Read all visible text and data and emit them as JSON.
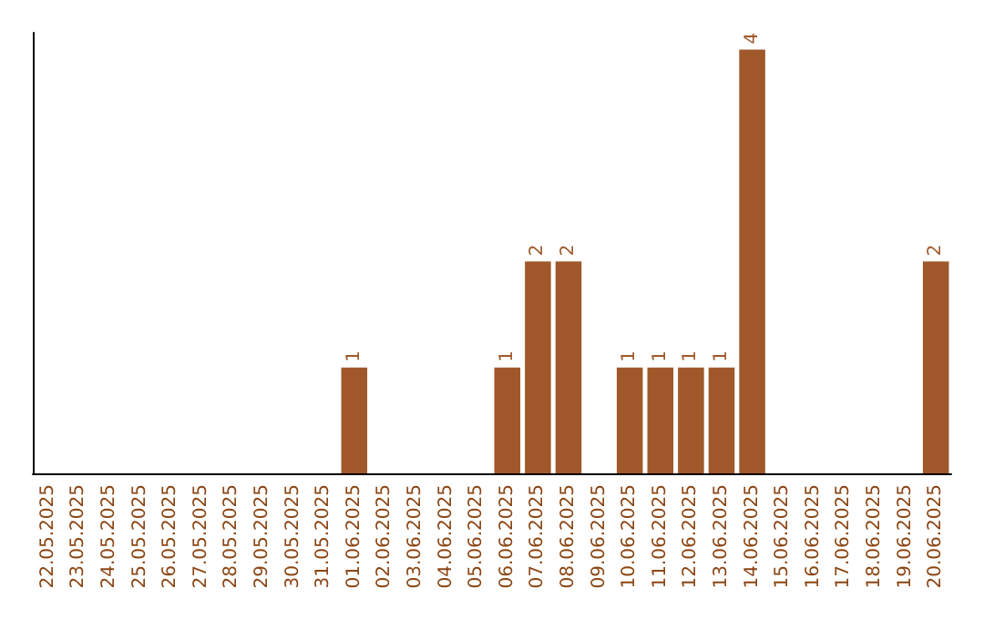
{
  "chart_data": {
    "type": "bar",
    "categories": [
      "22.05.2025",
      "23.05.2025",
      "24.05.2025",
      "25.05.2025",
      "26.05.2025",
      "27.05.2025",
      "28.05.2025",
      "29.05.2025",
      "30.05.2025",
      "31.05.2025",
      "01.06.2025",
      "02.06.2025",
      "03.06.2025",
      "04.06.2025",
      "05.06.2025",
      "06.06.2025",
      "07.06.2025",
      "08.06.2025",
      "09.06.2025",
      "10.06.2025",
      "11.06.2025",
      "12.06.2025",
      "13.06.2025",
      "14.06.2025",
      "15.06.2025",
      "16.06.2025",
      "17.06.2025",
      "18.06.2025",
      "19.06.2025",
      "20.06.2025"
    ],
    "values": [
      0,
      0,
      0,
      0,
      0,
      0,
      0,
      0,
      0,
      0,
      1,
      0,
      0,
      0,
      0,
      1,
      2,
      2,
      0,
      1,
      1,
      1,
      1,
      4,
      0,
      0,
      0,
      0,
      0,
      2
    ],
    "value_labels": [
      null,
      null,
      null,
      null,
      null,
      null,
      null,
      null,
      null,
      null,
      "1",
      null,
      null,
      null,
      null,
      "1",
      "2",
      "2",
      null,
      "1",
      "1",
      "1",
      "1",
      "4",
      null,
      null,
      null,
      null,
      null,
      "2"
    ],
    "color": "#a0582a"
  }
}
